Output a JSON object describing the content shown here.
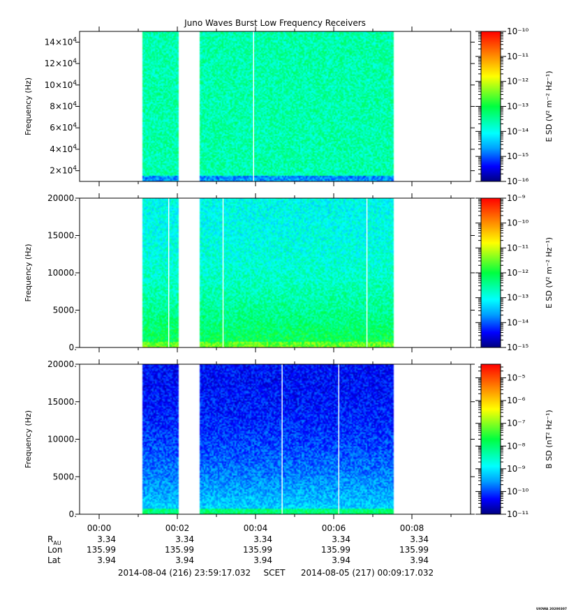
{
  "chart_data": {
    "type": "heatmap",
    "title": "Juno Waves Burst Low Frequency Receivers",
    "x_axis": {
      "range_minutes": [
        -0.5,
        9.5
      ],
      "tick_minutes": [
        0,
        2,
        4,
        6,
        8
      ],
      "tick_labels": [
        "00:00",
        "00:02",
        "00:04",
        "00:06",
        "00:08"
      ],
      "minor_step_minutes": 1
    },
    "data_intervals_minutes": [
      [
        1.1,
        2.03
      ],
      [
        2.57,
        7.55
      ]
    ],
    "panels": [
      {
        "name": "panel-1",
        "ylabel": "Frequency (Hz)",
        "ylim": [
          10000,
          150000
        ],
        "yticks": [
          {
            "value": 20000,
            "mant": "2×10",
            "exp": "4"
          },
          {
            "value": 40000,
            "mant": "4×10",
            "exp": "4"
          },
          {
            "value": 60000,
            "mant": "6×10",
            "exp": "4"
          },
          {
            "value": 80000,
            "mant": "8×10",
            "exp": "4"
          },
          {
            "value": 100000,
            "mant": "10×10",
            "exp": "4"
          },
          {
            "value": 120000,
            "mant": "12×10",
            "exp": "4"
          },
          {
            "value": 140000,
            "mant": "14×10",
            "exp": "4"
          }
        ],
        "colorbar": {
          "label": "E SD (V² m⁻² Hz⁻¹)",
          "log_range": [
            -16,
            -10
          ],
          "ticks": [
            -16,
            -15,
            -14,
            -13,
            -12,
            -11,
            -10
          ],
          "ticks_labels": [
            "10⁻¹⁶",
            "10⁻¹⁵",
            "10⁻¹⁴",
            "10⁻¹³",
            "10⁻¹²",
            "10⁻¹¹",
            "10⁻¹⁰"
          ]
        },
        "spectrum": {
          "top_log": -13.6,
          "bottom_log": -13.6,
          "floor_log": -14.8
        },
        "gap_lines_minutes": [
          3.95
        ]
      },
      {
        "name": "panel-2",
        "ylabel": "Frequency (Hz)",
        "ylim": [
          0,
          20000
        ],
        "yticks": [
          {
            "value": 0,
            "label": "0."
          },
          {
            "value": 5000,
            "label": "5000."
          },
          {
            "value": 10000,
            "label": "10000."
          },
          {
            "value": 15000,
            "label": "15000."
          },
          {
            "value": 20000,
            "label": "20000."
          }
        ],
        "colorbar": {
          "label": "E SD (V² m⁻² Hz⁻¹)",
          "log_range": [
            -15,
            -9
          ],
          "ticks": [
            -15,
            -14,
            -13,
            -12,
            -11,
            -10,
            -9
          ],
          "ticks_labels": [
            "10⁻¹⁵",
            "10⁻¹⁴",
            "10⁻¹³",
            "10⁻¹²",
            "10⁻¹¹",
            "10⁻¹⁰",
            "10⁻⁹"
          ]
        },
        "spectrum": {
          "top_log": -13.0,
          "bottom_log": -12.0,
          "floor_log": -11.6
        },
        "gap_lines_minutes": [
          1.78,
          3.17,
          6.85
        ]
      },
      {
        "name": "panel-3",
        "ylabel": "Frequency (Hz)",
        "ylim": [
          0,
          20000
        ],
        "yticks": [
          {
            "value": 0,
            "label": "0."
          },
          {
            "value": 5000,
            "label": "5000."
          },
          {
            "value": 10000,
            "label": "10000."
          },
          {
            "value": 15000,
            "label": "15000."
          },
          {
            "value": 20000,
            "label": "20000."
          }
        ],
        "colorbar": {
          "label": "B SD (nT² Hz⁻¹)",
          "log_range": [
            -11,
            -4.4
          ],
          "ticks": [
            -11,
            -10,
            -9,
            -8,
            -7,
            -6,
            -5
          ],
          "ticks_labels": [
            "10⁻¹¹",
            "10⁻¹⁰",
            "10⁻⁹",
            "10⁻⁸",
            "10⁻⁷",
            "10⁻⁶",
            "10⁻⁵"
          ]
        },
        "spectrum": {
          "top_log": -10.3,
          "bottom_log": -9.1,
          "floor_log": -8.1
        },
        "gap_lines_minutes": [
          4.68,
          6.13
        ]
      }
    ],
    "ephemeris": [
      {
        "label": "R",
        "sub": "AU",
        "values": [
          "3.34",
          "3.34",
          "3.34",
          "3.34",
          "3.34"
        ]
      },
      {
        "label": "Lon",
        "sub": "",
        "values": [
          "135.99",
          "135.99",
          "135.99",
          "135.99",
          "135.99"
        ]
      },
      {
        "label": "Lat",
        "sub": "",
        "values": [
          "3.94",
          "3.94",
          "3.94",
          "3.94",
          "3.94"
        ]
      }
    ],
    "time_range": {
      "start": "2014-08-04 (216) 23:59:17.032",
      "mid": "SCET",
      "end": "2014-08-05 (217) 00:09:17.032"
    },
    "footer": "UIOWA 20200307"
  }
}
